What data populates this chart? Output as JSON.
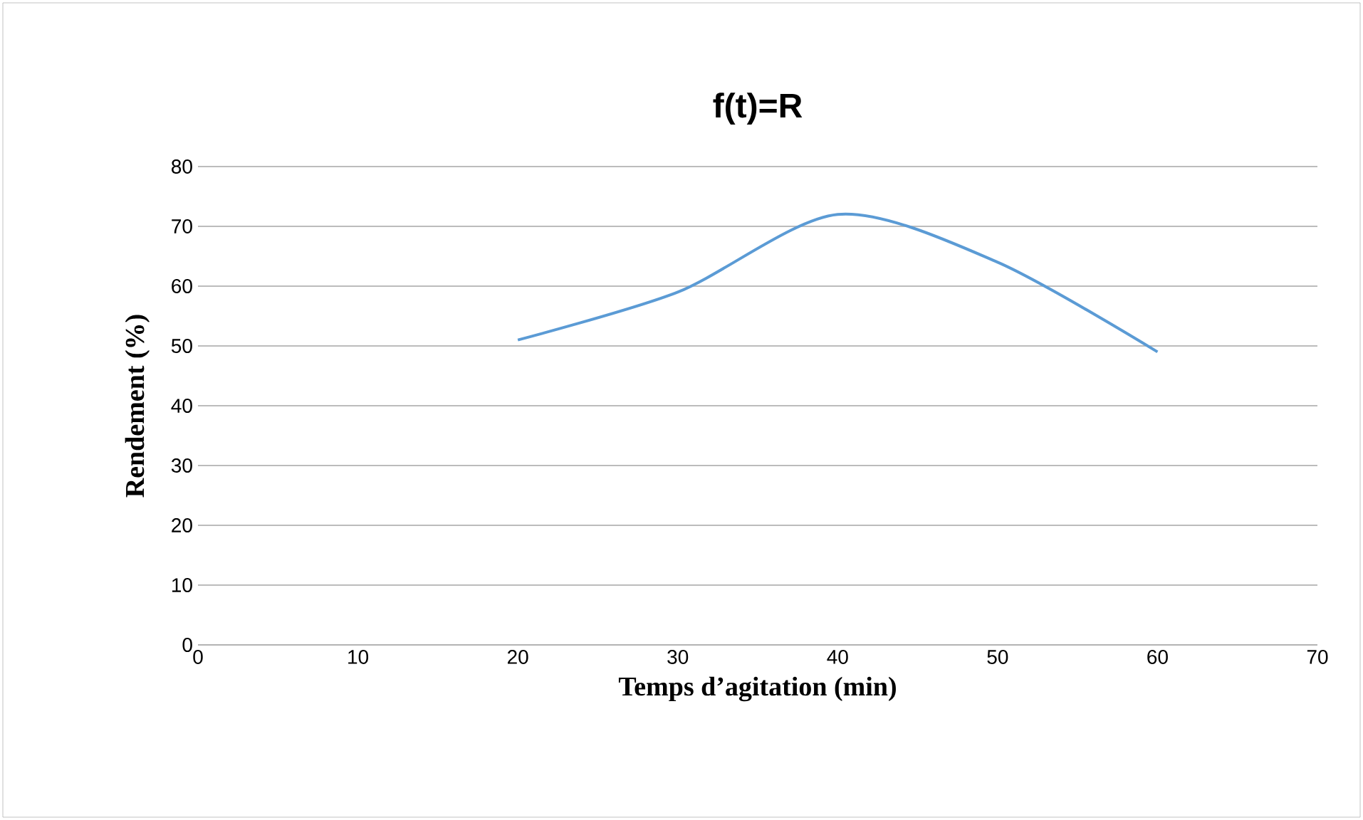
{
  "chart_data": {
    "type": "line",
    "title": "f(t)=R",
    "xlabel": "Temps d’agitation (min)",
    "ylabel": "Rendement (%)",
    "x": [
      20,
      30,
      40,
      50,
      60
    ],
    "series": [
      {
        "color": "#5b9bd5",
        "values": [
          51,
          59,
          72,
          64,
          49
        ]
      }
    ],
    "xlim": [
      0,
      70
    ],
    "xticks": [
      0,
      10,
      20,
      30,
      40,
      50,
      60,
      70
    ],
    "ylim": [
      0,
      80
    ],
    "yticks": [
      0,
      10,
      20,
      30,
      40,
      50,
      60,
      70,
      80
    ],
    "grid": "y",
    "marker": "none",
    "line_style": "solid"
  }
}
